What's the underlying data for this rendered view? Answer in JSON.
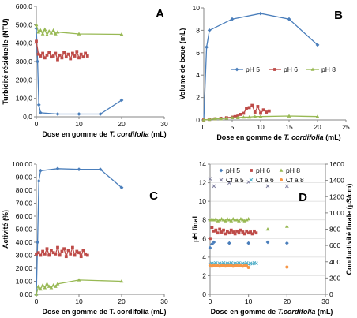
{
  "chart_data": [
    {
      "panel": "A",
      "type": "line",
      "ylabel": "Turbidité résiduelle (NTU)",
      "xlabel": "Dose en gomme de T. cordifolia (mL)",
      "xlabel_parts": [
        "Dose en gomme de ",
        "T. cordifolia",
        " (mL)"
      ],
      "xlim": [
        0,
        30
      ],
      "ylim": [
        0,
        600
      ],
      "xticks": [
        "0",
        "10",
        "20",
        "30"
      ],
      "yticks": [
        "0,0",
        "100,0",
        "200,0",
        "300,0",
        "400,0",
        "500,0",
        "600,0"
      ],
      "grid": false,
      "series": [
        {
          "color": "#4A7EBB",
          "marker": "diamond",
          "x": [
            0,
            0.3,
            0.6,
            1,
            5,
            10,
            15,
            20
          ],
          "y": [
            480,
            300,
            65,
            22,
            15,
            15,
            15,
            90
          ]
        },
        {
          "color": "#BE4B48",
          "marker": "square",
          "x": [
            0,
            0.5,
            1,
            1.5,
            2,
            2.5,
            3,
            3.5,
            4,
            4.5,
            5,
            5.5,
            6,
            6.5,
            7,
            7.5,
            8,
            8.5,
            9,
            9.5,
            10,
            10.5,
            11,
            11.5,
            12
          ],
          "y": [
            410,
            340,
            330,
            345,
            320,
            335,
            350,
            325,
            330,
            345,
            310,
            335,
            320,
            350,
            325,
            340,
            315,
            345,
            330,
            355,
            320,
            340,
            325,
            345,
            330
          ]
        },
        {
          "color": "#98B954",
          "marker": "triangle",
          "x": [
            0,
            0.5,
            1,
            1.5,
            2,
            2.5,
            3,
            3.5,
            4,
            4.5,
            5,
            10,
            20
          ],
          "y": [
            500,
            460,
            470,
            450,
            475,
            445,
            465,
            455,
            470,
            450,
            460,
            450,
            448
          ]
        }
      ]
    },
    {
      "panel": "B",
      "type": "line",
      "ylabel": "Volume de boue (mL)",
      "xlabel": "Dose en gomme de T. cordifolia (mL)",
      "xlabel_parts": [
        "Dose en gomme de ",
        "T. cordifolia",
        " (mL)"
      ],
      "xlim": [
        0,
        25
      ],
      "ylim": [
        0,
        10
      ],
      "xticks": [
        "0",
        "5",
        "10",
        "15",
        "20",
        "25"
      ],
      "yticks": [
        "0",
        "2",
        "4",
        "6",
        "8",
        "10"
      ],
      "grid": false,
      "legend_position": "middle-right",
      "series": [
        {
          "name": "pH 5",
          "color": "#4A7EBB",
          "marker": "diamond",
          "x": [
            0,
            0.5,
            1,
            5,
            10,
            15,
            20
          ],
          "y": [
            0,
            6.5,
            8,
            9,
            9.5,
            9,
            6.7
          ]
        },
        {
          "name": "pH 6",
          "color": "#BE4B48",
          "marker": "square",
          "x": [
            0,
            1,
            2,
            3,
            4,
            5,
            5.5,
            6,
            6.5,
            7,
            7.5,
            8,
            8.5,
            9,
            9.5,
            10,
            10.5,
            11,
            11.5
          ],
          "y": [
            0,
            0.05,
            0.1,
            0.15,
            0.2,
            0.25,
            0.3,
            0.35,
            0.5,
            0.6,
            1.0,
            1.1,
            1.3,
            0.7,
            1.2,
            0.6,
            0.9,
            0.7,
            0.8
          ]
        },
        {
          "name": "pH 8",
          "color": "#98B954",
          "marker": "triangle",
          "x": [
            0,
            1,
            2,
            3,
            4,
            5,
            6,
            7,
            8,
            9,
            10,
            15,
            20
          ],
          "y": [
            0,
            0.05,
            0.1,
            0.1,
            0.15,
            0.2,
            0.2,
            0.25,
            0.25,
            0.3,
            0.3,
            0.35,
            0.3
          ]
        }
      ]
    },
    {
      "panel": "C",
      "type": "line",
      "ylabel": "Activité (%)",
      "xlabel": "Dose en gomme de T. cordifolia (mL)",
      "xlim": [
        0,
        30
      ],
      "ylim": [
        0,
        100
      ],
      "xticks": [
        "0",
        "10",
        "20",
        "30"
      ],
      "yticks": [
        "0,00",
        "10,00",
        "20,00",
        "30,00",
        "40,00",
        "50,00",
        "60,00",
        "70,00",
        "80,00",
        "90,00",
        "100,00"
      ],
      "grid": false,
      "series": [
        {
          "color": "#4A7EBB",
          "marker": "diamond",
          "x": [
            0,
            0.3,
            0.6,
            1,
            5,
            10,
            15,
            20
          ],
          "y": [
            0,
            40,
            87,
            95,
            96.5,
            96,
            96,
            82
          ]
        },
        {
          "color": "#BE4B48",
          "marker": "square",
          "x": [
            0,
            0.5,
            1,
            1.5,
            2,
            2.5,
            3,
            3.5,
            4,
            4.5,
            5,
            5.5,
            6,
            6.5,
            7,
            7.5,
            8,
            8.5,
            9,
            9.5,
            10,
            10.5,
            11,
            11.5,
            12
          ],
          "y": [
            31,
            32,
            30,
            33,
            31,
            35,
            30,
            34,
            32,
            31,
            36,
            30,
            33,
            35,
            29,
            34,
            31,
            36,
            30,
            33,
            32,
            29,
            34,
            31,
            30
          ]
        },
        {
          "color": "#98B954",
          "marker": "triangle",
          "x": [
            0,
            0.5,
            1,
            1.5,
            2,
            2.5,
            3,
            3.5,
            4,
            4.5,
            5,
            10,
            20
          ],
          "y": [
            0,
            6,
            4,
            7,
            5,
            8,
            6,
            5,
            7,
            6,
            8,
            11,
            10
          ]
        }
      ]
    },
    {
      "panel": "D",
      "type": "scatter",
      "ylabel": "pH final",
      "y2label": "Conductivité finale (µS/cm)",
      "xlabel": "Dose en gomme de T.cordifolia (mL)",
      "xlabel_parts": [
        "Dose en gomme de ",
        "T.cordifolia",
        " (mL)"
      ],
      "xlim": [
        0,
        30
      ],
      "ylim": [
        0,
        14
      ],
      "y2lim": [
        0,
        1600
      ],
      "xticks": [
        "0",
        "10",
        "20",
        "30"
      ],
      "yticks": [
        "0",
        "2",
        "4",
        "6",
        "8",
        "10",
        "12",
        "14"
      ],
      "y2ticks": [
        "0",
        "200",
        "400",
        "600",
        "800",
        "1000",
        "1200",
        "1400",
        "1600"
      ],
      "grid": true,
      "legend_position": "top",
      "series": [
        {
          "name": "pH 5",
          "axis": "left",
          "color": "#4A7EBB",
          "marker": "diamond",
          "x": [
            0,
            0.5,
            1,
            5,
            10,
            15,
            20
          ],
          "y": [
            5.0,
            5.4,
            5.6,
            5.5,
            5.5,
            5.6,
            5.5
          ]
        },
        {
          "name": "pH 6",
          "axis": "left",
          "color": "#BE4B48",
          "marker": "square",
          "x": [
            0,
            0.5,
            1,
            1.5,
            2,
            2.5,
            3,
            3.5,
            4,
            4.5,
            5,
            5.5,
            6,
            6.5,
            7,
            7.5,
            8,
            8.5,
            9,
            9.5,
            10,
            10.5,
            11,
            11.5,
            12
          ],
          "y": [
            6.0,
            7.2,
            6.8,
            6.9,
            6.6,
            7.0,
            6.7,
            6.9,
            6.5,
            6.8,
            6.6,
            6.9,
            6.7,
            6.5,
            6.8,
            6.6,
            6.9,
            6.7,
            6.5,
            6.8,
            6.6,
            6.7,
            6.5,
            6.8,
            6.6
          ]
        },
        {
          "name": "pH 8",
          "axis": "left",
          "color": "#98B954",
          "marker": "triangle",
          "x": [
            0,
            0.5,
            1,
            1.5,
            2,
            2.5,
            3,
            3.5,
            4,
            4.5,
            5,
            5.5,
            6,
            6.5,
            7,
            7.5,
            8,
            8.5,
            9,
            9.5,
            10,
            15,
            20
          ],
          "y": [
            8.0,
            8.1,
            8.0,
            8.1,
            7.9,
            8.0,
            8.1,
            8.0,
            7.9,
            8.1,
            8.0,
            7.9,
            8.1,
            8.0,
            8.0,
            7.9,
            8.1,
            8.0,
            7.9,
            8.0,
            8.1,
            7.0,
            7.3
          ]
        },
        {
          "name": "Cf à 5",
          "axis": "right",
          "color": "#7F7F9F",
          "marker": "x",
          "x": [
            0,
            1,
            5,
            10,
            15,
            20
          ],
          "y": [
            1420,
            1330,
            1370,
            1380,
            1330,
            1330
          ]
        },
        {
          "name": "Cf à 6",
          "axis": "right",
          "color": "#4BACC6",
          "marker": "x",
          "x": [
            0,
            0.5,
            1,
            1.5,
            2,
            2.5,
            3,
            3.5,
            4,
            4.5,
            5,
            5.5,
            6,
            6.5,
            7,
            7.5,
            8,
            8.5,
            9,
            9.5,
            10,
            10.5,
            11,
            11.5,
            12
          ],
          "y": [
            370,
            380,
            375,
            385,
            370,
            380,
            375,
            385,
            372,
            380,
            376,
            384,
            370,
            380,
            375,
            385,
            372,
            380,
            376,
            384,
            370,
            380,
            375,
            385,
            380
          ]
        },
        {
          "name": "Cf à 8",
          "axis": "right",
          "color": "#F79646",
          "marker": "circle",
          "x": [
            0,
            0.5,
            1,
            1.5,
            2,
            2.5,
            3,
            3.5,
            4,
            4.5,
            5,
            5.5,
            6,
            6.5,
            7,
            7.5,
            8,
            8.5,
            9,
            9.5,
            10,
            20
          ],
          "y": [
            350,
            345,
            355,
            348,
            352,
            346,
            350,
            354,
            347,
            351,
            349,
            353,
            346,
            350,
            355,
            348,
            352,
            346,
            350,
            349,
            330,
            335
          ]
        }
      ]
    }
  ]
}
